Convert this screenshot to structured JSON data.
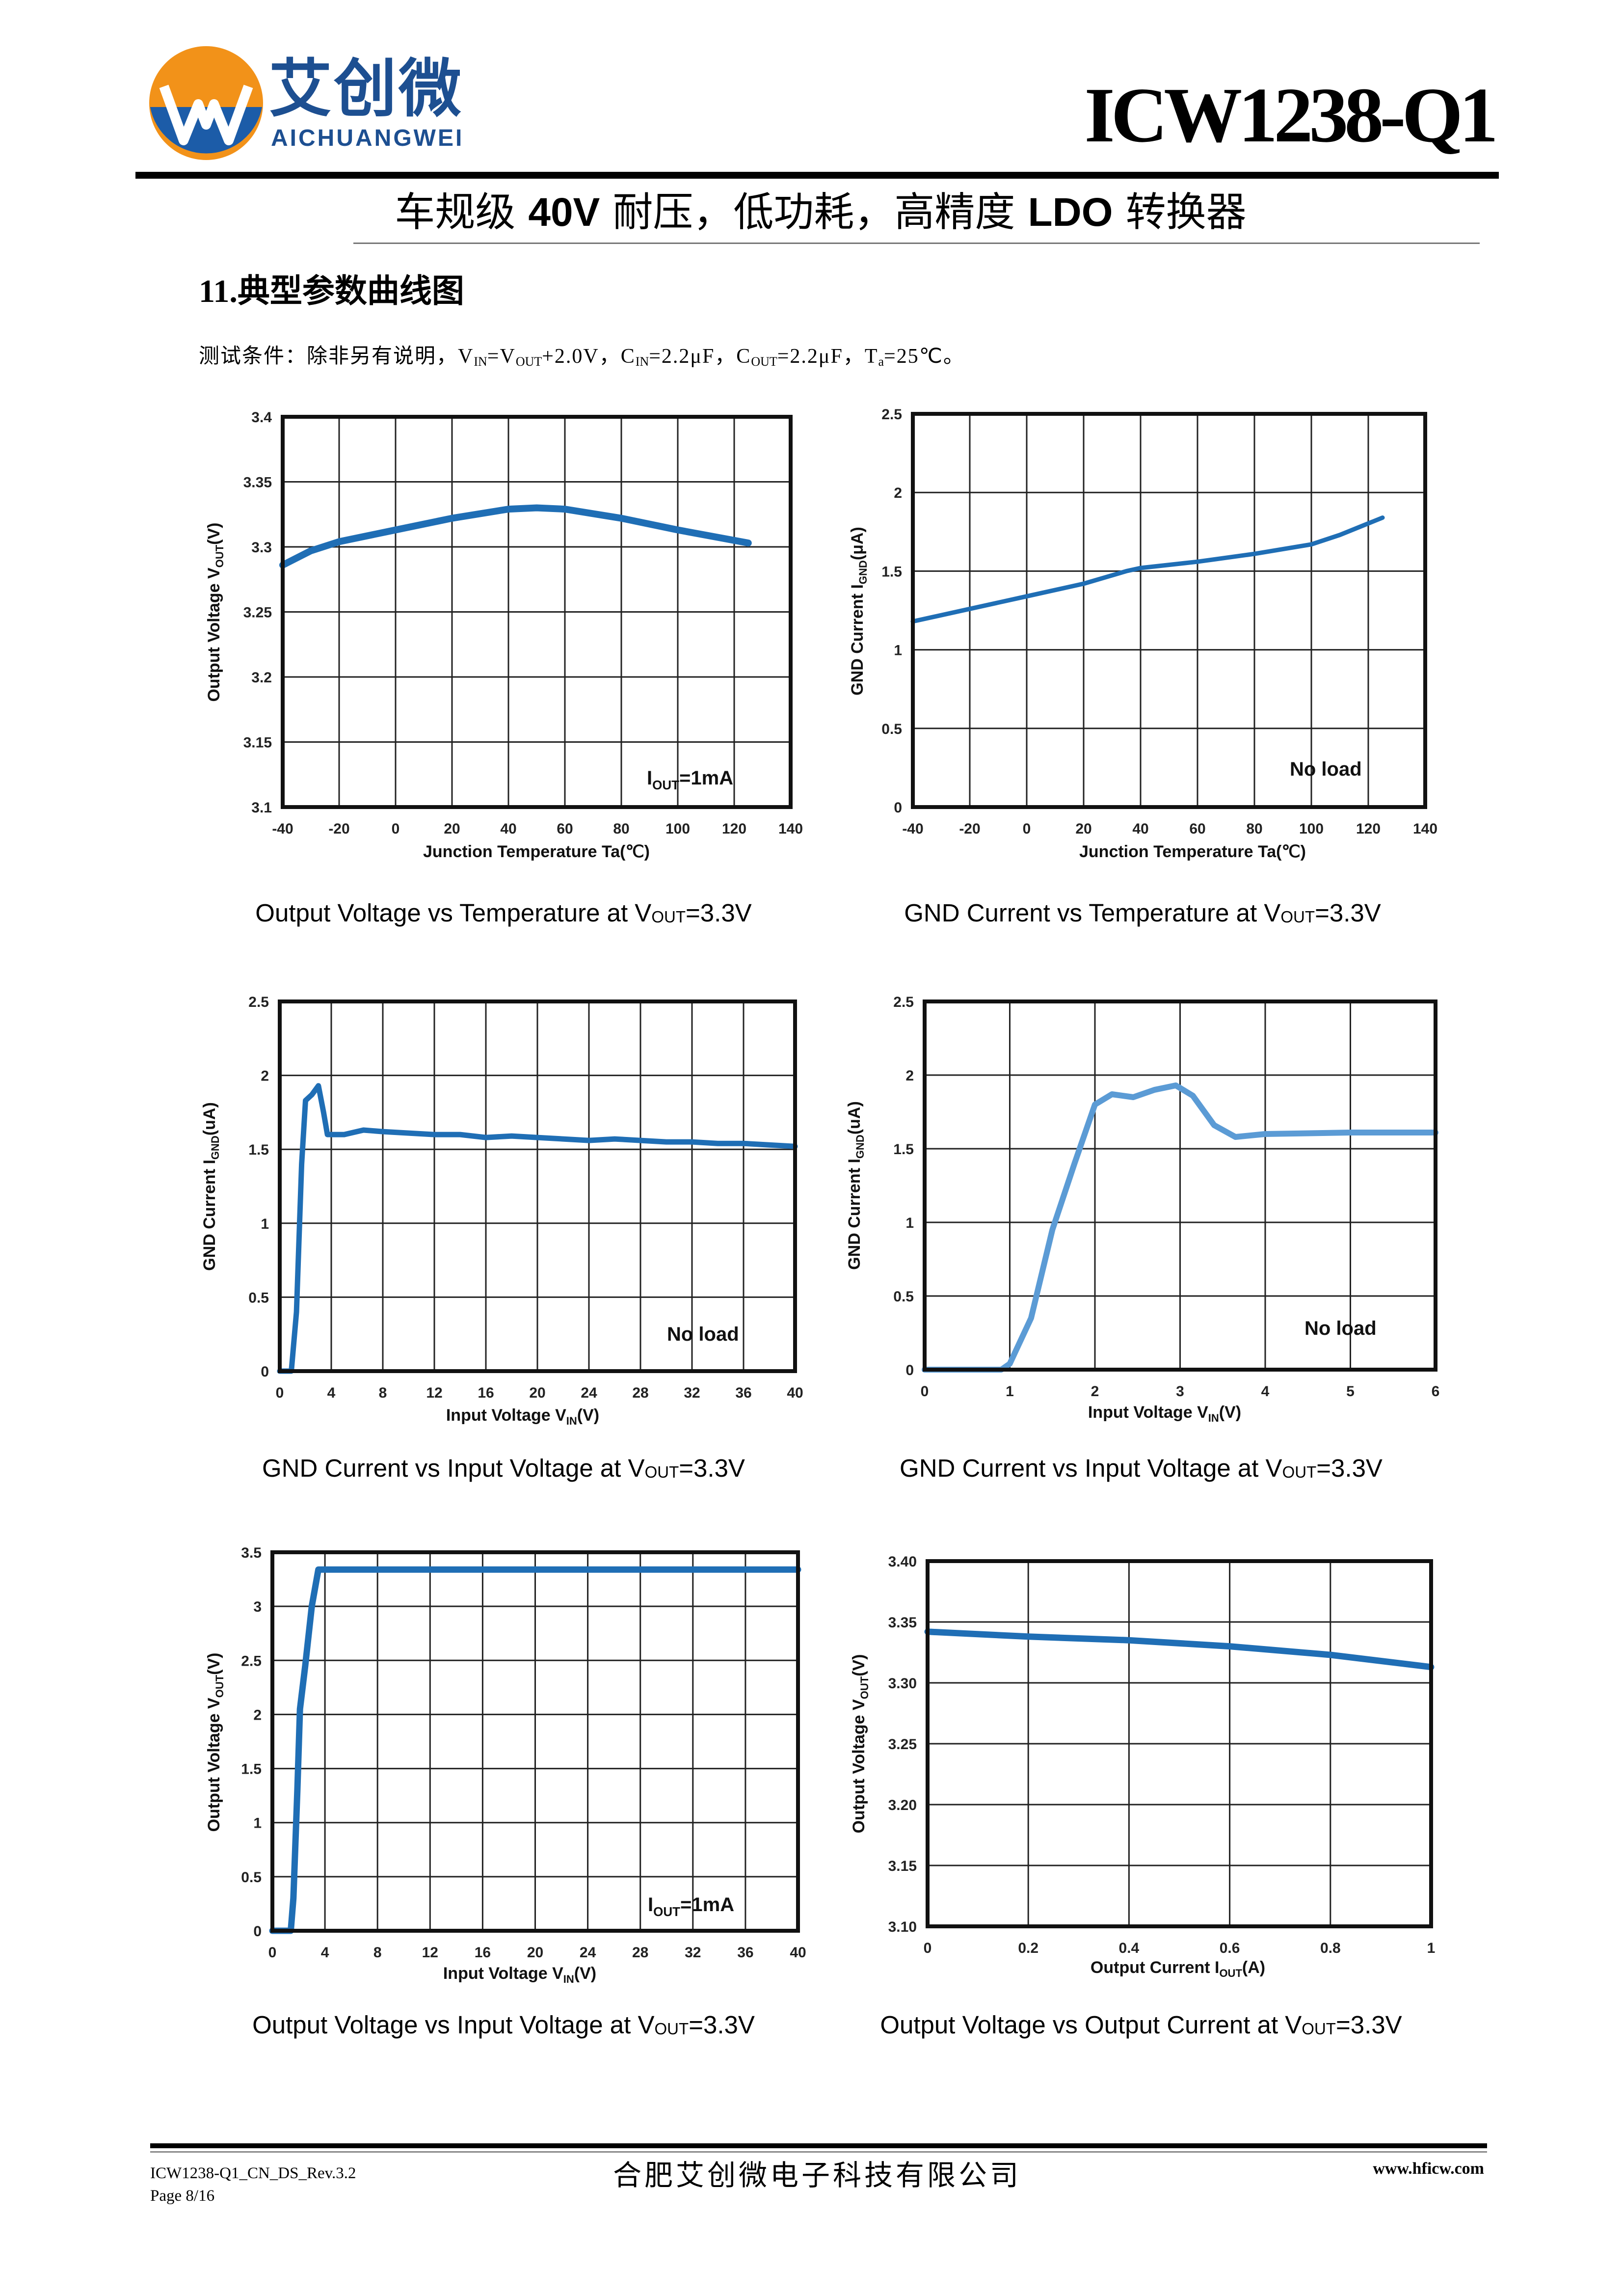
{
  "header": {
    "logo": {
      "cn": "艾创微",
      "en": "AICHUANGWEI",
      "colors": {
        "orange": "#f29219",
        "blue": "#1c5ca8"
      }
    },
    "part_number": "ICW1238-Q1",
    "subtitle": [
      "车规级 ",
      "40V",
      " 耐压，低功耗，高精度 ",
      "LDO",
      " 转换器"
    ]
  },
  "section": {
    "number": "11.",
    "title": "典型参数曲线图"
  },
  "conditions": [
    "测试条件：除非另有说明，V",
    "IN",
    "=V",
    "OUT",
    "+2.0V，C",
    "IN",
    "=2.2μF，C",
    "OUT",
    "=2.2μF，T",
    "a",
    "=25℃。"
  ],
  "chart_data": [
    {
      "type": "line",
      "caption": [
        "Output Voltage vs Temperature at V",
        "OUT",
        "=3.3V"
      ],
      "xlabel": [
        "Junction Temperature Ta(℃)"
      ],
      "ylabel": [
        "Output Voltage V",
        "OUT",
        "(V)"
      ],
      "annotation": [
        "I",
        "OUT",
        "=1mA"
      ],
      "xlim": [
        -40,
        140
      ],
      "ylim": [
        3.1,
        3.4
      ],
      "xticks": [
        "-40",
        "-20",
        "0",
        "20",
        "40",
        "60",
        "80",
        "100",
        "120",
        "140"
      ],
      "yticks": [
        "3.1",
        "3.15",
        "3.2",
        "3.25",
        "3.3",
        "3.35",
        "3.4"
      ],
      "grid": true,
      "series": [
        {
          "color": "#1f6eb5",
          "x": [
            -40,
            -30,
            -20,
            0,
            20,
            40,
            50,
            60,
            80,
            100,
            125
          ],
          "y": [
            3.286,
            3.297,
            3.304,
            3.313,
            3.322,
            3.329,
            3.33,
            3.329,
            3.322,
            3.313,
            3.303
          ]
        }
      ]
    },
    {
      "type": "line",
      "caption": [
        "GND Current vs Temperature at V",
        "OUT",
        "=3.3V"
      ],
      "xlabel": [
        "Junction Temperature Ta(℃)"
      ],
      "ylabel": [
        "GND Current I",
        "GND",
        "(μA)"
      ],
      "annotation": [
        "No load"
      ],
      "xlim": [
        -40,
        140
      ],
      "ylim": [
        0,
        2.5
      ],
      "xticks": [
        "-40",
        "-20",
        "0",
        "20",
        "40",
        "60",
        "80",
        "100",
        "120",
        "140"
      ],
      "yticks": [
        "0",
        "0.5",
        "1",
        "1.5",
        "2",
        "2.5"
      ],
      "grid": true,
      "series": [
        {
          "color": "#1f6eb5",
          "x": [
            -40,
            -20,
            0,
            20,
            35,
            40,
            60,
            80,
            100,
            110,
            125
          ],
          "y": [
            1.18,
            1.26,
            1.34,
            1.42,
            1.5,
            1.52,
            1.56,
            1.61,
            1.67,
            1.73,
            1.84
          ]
        }
      ]
    },
    {
      "type": "line",
      "caption": [
        "GND Current vs Input Voltage at V",
        "OUT",
        "=3.3V"
      ],
      "xlabel": [
        "Input Voltage V",
        "IN",
        "(V)"
      ],
      "ylabel": [
        "GND Current I",
        "GND",
        "(uA)"
      ],
      "annotation": [
        "No load"
      ],
      "xlim": [
        0,
        40
      ],
      "ylim": [
        0,
        2.5
      ],
      "xticks": [
        "0",
        "4",
        "8",
        "12",
        "16",
        "20",
        "24",
        "28",
        "32",
        "36",
        "40"
      ],
      "yticks": [
        "0",
        "0.5",
        "1",
        "1.5",
        "2",
        "2.5"
      ],
      "grid": true,
      "series": [
        {
          "color": "#1f6eb5",
          "x": [
            0,
            0.9,
            1.3,
            1.7,
            2.0,
            2.5,
            3.0,
            3.4,
            3.7,
            5,
            6.5,
            8,
            10,
            12,
            14,
            16,
            18,
            20,
            22,
            24,
            26,
            28,
            30,
            32,
            34,
            36,
            38,
            40
          ],
          "y": [
            0,
            0,
            0.4,
            1.4,
            1.83,
            1.87,
            1.93,
            1.75,
            1.6,
            1.6,
            1.63,
            1.62,
            1.61,
            1.6,
            1.6,
            1.58,
            1.59,
            1.58,
            1.57,
            1.56,
            1.57,
            1.56,
            1.55,
            1.55,
            1.54,
            1.54,
            1.53,
            1.52
          ]
        }
      ]
    },
    {
      "type": "line",
      "caption": [
        "GND Current vs Input Voltage at V",
        "OUT",
        "=3.3V"
      ],
      "xlabel": [
        "Input Voltage V",
        "IN",
        "(V)"
      ],
      "ylabel": [
        "GND Current I",
        "GND",
        "(uA)"
      ],
      "annotation": [
        "No load"
      ],
      "xlim": [
        0,
        6
      ],
      "ylim": [
        0,
        2.5
      ],
      "xticks": [
        "0",
        "1",
        "2",
        "3",
        "4",
        "5",
        "6"
      ],
      "yticks": [
        "0",
        "0.5",
        "1",
        "1.5",
        "2",
        "2.5"
      ],
      "grid": true,
      "series": [
        {
          "color": "#5b9bd5",
          "x": [
            0,
            0.9,
            1.0,
            1.25,
            1.5,
            1.76,
            2.0,
            2.2,
            2.45,
            2.7,
            2.95,
            3.15,
            3.4,
            3.65,
            4.0,
            5.0,
            6.0
          ],
          "y": [
            0,
            0,
            0.04,
            0.35,
            0.95,
            1.4,
            1.8,
            1.87,
            1.85,
            1.9,
            1.93,
            1.86,
            1.66,
            1.58,
            1.6,
            1.61,
            1.61
          ]
        }
      ]
    },
    {
      "type": "line",
      "caption": [
        "Output Voltage vs Input Voltage at V",
        "OUT",
        "=3.3V"
      ],
      "xlabel": [
        "Input Voltage V",
        "IN",
        "(V)"
      ],
      "ylabel": [
        "Output Voltage V",
        "OUT",
        "(V)"
      ],
      "annotation": [
        "I",
        "OUT",
        "=1mA"
      ],
      "xlim": [
        0,
        40
      ],
      "ylim": [
        0,
        3.5
      ],
      "xticks": [
        "0",
        "4",
        "8",
        "12",
        "16",
        "20",
        "24",
        "28",
        "32",
        "36",
        "40"
      ],
      "yticks": [
        "0",
        "0.5",
        "1",
        "1.5",
        "2",
        "2.5",
        "3",
        "3.5"
      ],
      "grid": true,
      "series": [
        {
          "color": "#1f6eb5",
          "x": [
            0,
            1.4,
            1.6,
            1.9,
            2.1,
            2.5,
            3.0,
            3.5,
            40
          ],
          "y": [
            0,
            0,
            0.3,
            1.3,
            2.05,
            2.45,
            3.0,
            3.34,
            3.34
          ]
        }
      ]
    },
    {
      "type": "line",
      "caption": [
        "Output Voltage vs Output Current at V",
        "OUT",
        "=3.3V"
      ],
      "xlabel": [
        "Output Current I",
        "OUT",
        "(A)"
      ],
      "ylabel": [
        "Output Voltage V",
        "OUT",
        "(V)"
      ],
      "xlim": [
        0,
        1
      ],
      "ylim": [
        3.1,
        3.4
      ],
      "xticks": [
        "0",
        "0.2",
        "0.4",
        "0.6",
        "0.8",
        "1"
      ],
      "yticks": [
        "3.10",
        "3.15",
        "3.20",
        "3.25",
        "3.30",
        "3.35",
        "3.40"
      ],
      "grid": true,
      "series": [
        {
          "color": "#1f6eb5",
          "x": [
            0,
            0.2,
            0.4,
            0.6,
            0.8,
            1
          ],
          "y": [
            3.342,
            3.338,
            3.335,
            3.33,
            3.323,
            3.313
          ]
        }
      ]
    }
  ],
  "footer": {
    "doc_id": "ICW1238-Q1_CN_DS_Rev.3.2",
    "page": "Page 8/16",
    "company": "合肥艾创微电子科技有限公司",
    "website": "www.hficw.com"
  }
}
